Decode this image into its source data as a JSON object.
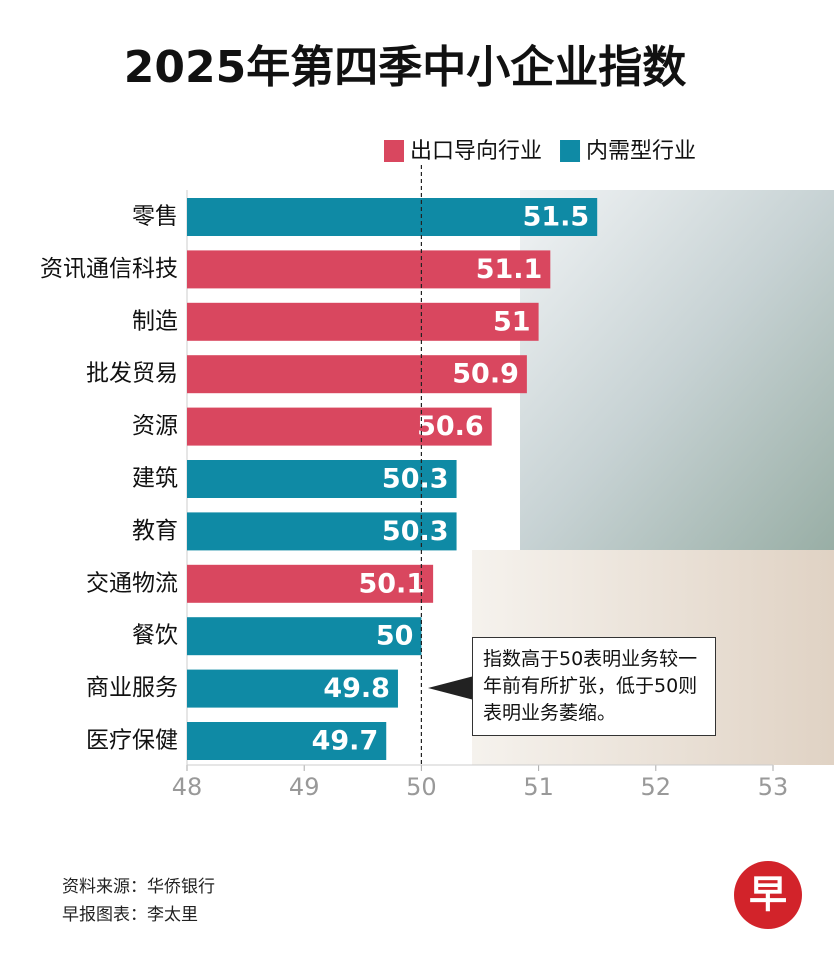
{
  "chart_data": {
    "type": "hbar",
    "title": "2025年第四季中小企业指数",
    "categories": [
      "零售",
      "资讯通信科技",
      "制造",
      "批发贸易",
      "资源",
      "建筑",
      "教育",
      "交通物流",
      "餐饮",
      "商业服务",
      "医疗保健"
    ],
    "series": [
      {
        "name": "出口导向行业",
        "color": "#d9475f",
        "values": [
          null,
          51.1,
          51,
          50.9,
          50.6,
          null,
          null,
          50.1,
          null,
          null,
          null
        ]
      },
      {
        "name": "内需型行业",
        "color": "#0f8aa5",
        "values": [
          51.5,
          null,
          null,
          null,
          null,
          50.3,
          50.3,
          null,
          50,
          49.8,
          49.7
        ]
      }
    ],
    "xlim": [
      48,
      53
    ],
    "xticks": [
      48,
      49,
      50,
      51,
      52,
      53
    ],
    "reference_line": 50,
    "annotation": "指数高于50表明业务较一年前有所扩张，低于50则表明业务萎缩。",
    "source": "资料来源：华侨银行",
    "credit": "早报图表：李太里",
    "logo": "早"
  }
}
